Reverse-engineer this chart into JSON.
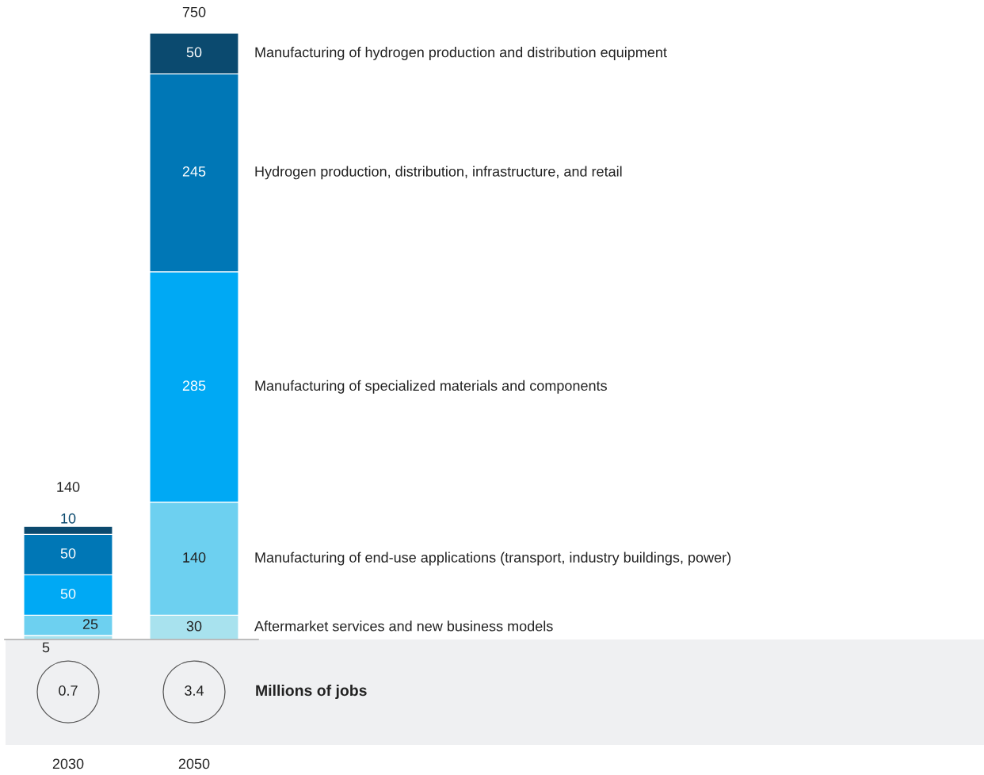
{
  "chart_data": {
    "type": "bar",
    "stacked": true,
    "data_labels": true,
    "categories": [
      "2030",
      "2050"
    ],
    "series": [
      {
        "name": "Aftermarket services and new business models",
        "color": "#a8e2ee",
        "values": [
          5,
          30
        ]
      },
      {
        "name": "Manufacturing of end-use applications (transport, industry buildings, power)",
        "color": "#6dd0f0",
        "values": [
          25,
          140
        ]
      },
      {
        "name": "Manufacturing of specialized materials and components",
        "color": "#00a9f4",
        "values": [
          50,
          285
        ]
      },
      {
        "name": "Hydrogen production, distribution, infrastructure, and retail",
        "color": "#0077b6",
        "values": [
          50,
          245
        ]
      },
      {
        "name": "Manufacturing of hydrogen production and distribution equipment",
        "color": "#0b4a6f",
        "values": [
          10,
          50
        ]
      }
    ],
    "totals": [
      "140",
      "750"
    ],
    "annotations": [
      "0.7",
      "3.4",
      "Millions of jobs"
    ],
    "grid": false,
    "legend": false
  }
}
